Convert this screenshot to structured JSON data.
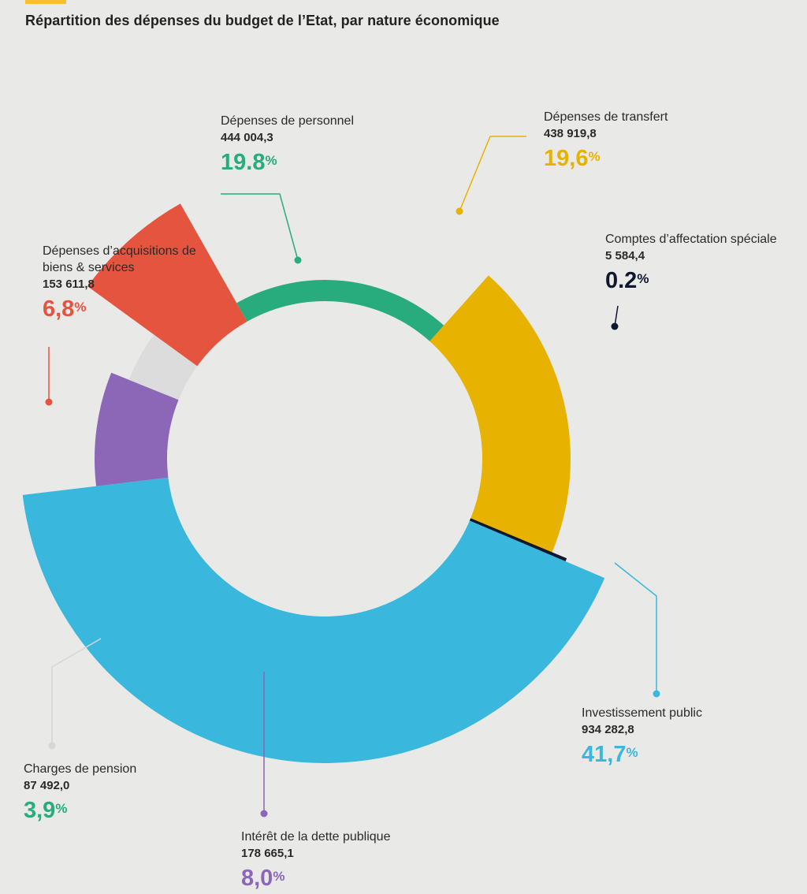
{
  "title": "Répartition des dépenses du budget de l’Etat, par nature économique",
  "colors": {
    "accent": "#f2c12e",
    "background": "#e9e9e8"
  },
  "chart_data": {
    "type": "pie",
    "subtype": "donut",
    "title": "Répartition des dépenses du budget de l’Etat, par nature économique",
    "slices": [
      {
        "label": "Dépenses de personnel",
        "value_text": "444 004,3",
        "value": 444004.3,
        "percent_text": "19.8",
        "percent": 19.8,
        "color": "#28ab7d",
        "label_color": "#28ab7d"
      },
      {
        "label": "Dépenses de transfert",
        "value_text": "438 919,8",
        "value": 438919.8,
        "percent_text": "19,6",
        "percent": 19.6,
        "color": "#e7b200",
        "label_color": "#e7b200"
      },
      {
        "label": "Comptes d’affectation spéciale",
        "value_text": "5 584,4",
        "value": 5584.4,
        "percent_text": "0.2",
        "percent": 0.2,
        "color": "#0f1630",
        "label_color": "#0f1630"
      },
      {
        "label": "Investissement public",
        "value_text": "934 282,8",
        "value": 934282.8,
        "percent_text": "41,7",
        "percent": 41.7,
        "color": "#3ab7dc",
        "label_color": "#3ab7dc"
      },
      {
        "label": "Intérêt de la dette publique",
        "value_text": "178 665,1",
        "value": 178665.1,
        "percent_text": "8,0",
        "percent": 8.0,
        "color": "#8c66b7",
        "label_color": "#8c66b7"
      },
      {
        "label": "Charges de pension",
        "value_text": "87 492,0",
        "value": 87492.0,
        "percent_text": "3,9",
        "percent": 3.9,
        "color": "#dcdcdc",
        "label_color": "#28ab7d"
      },
      {
        "label": "Dépenses d’acquisitions de biens & services",
        "value_text": "153 611,8",
        "value": 153611.8,
        "percent_text": "6,8",
        "percent": 6.8,
        "color": "#e5543f",
        "label_color": "#e5543f"
      }
    ],
    "percent_sign": "%"
  }
}
